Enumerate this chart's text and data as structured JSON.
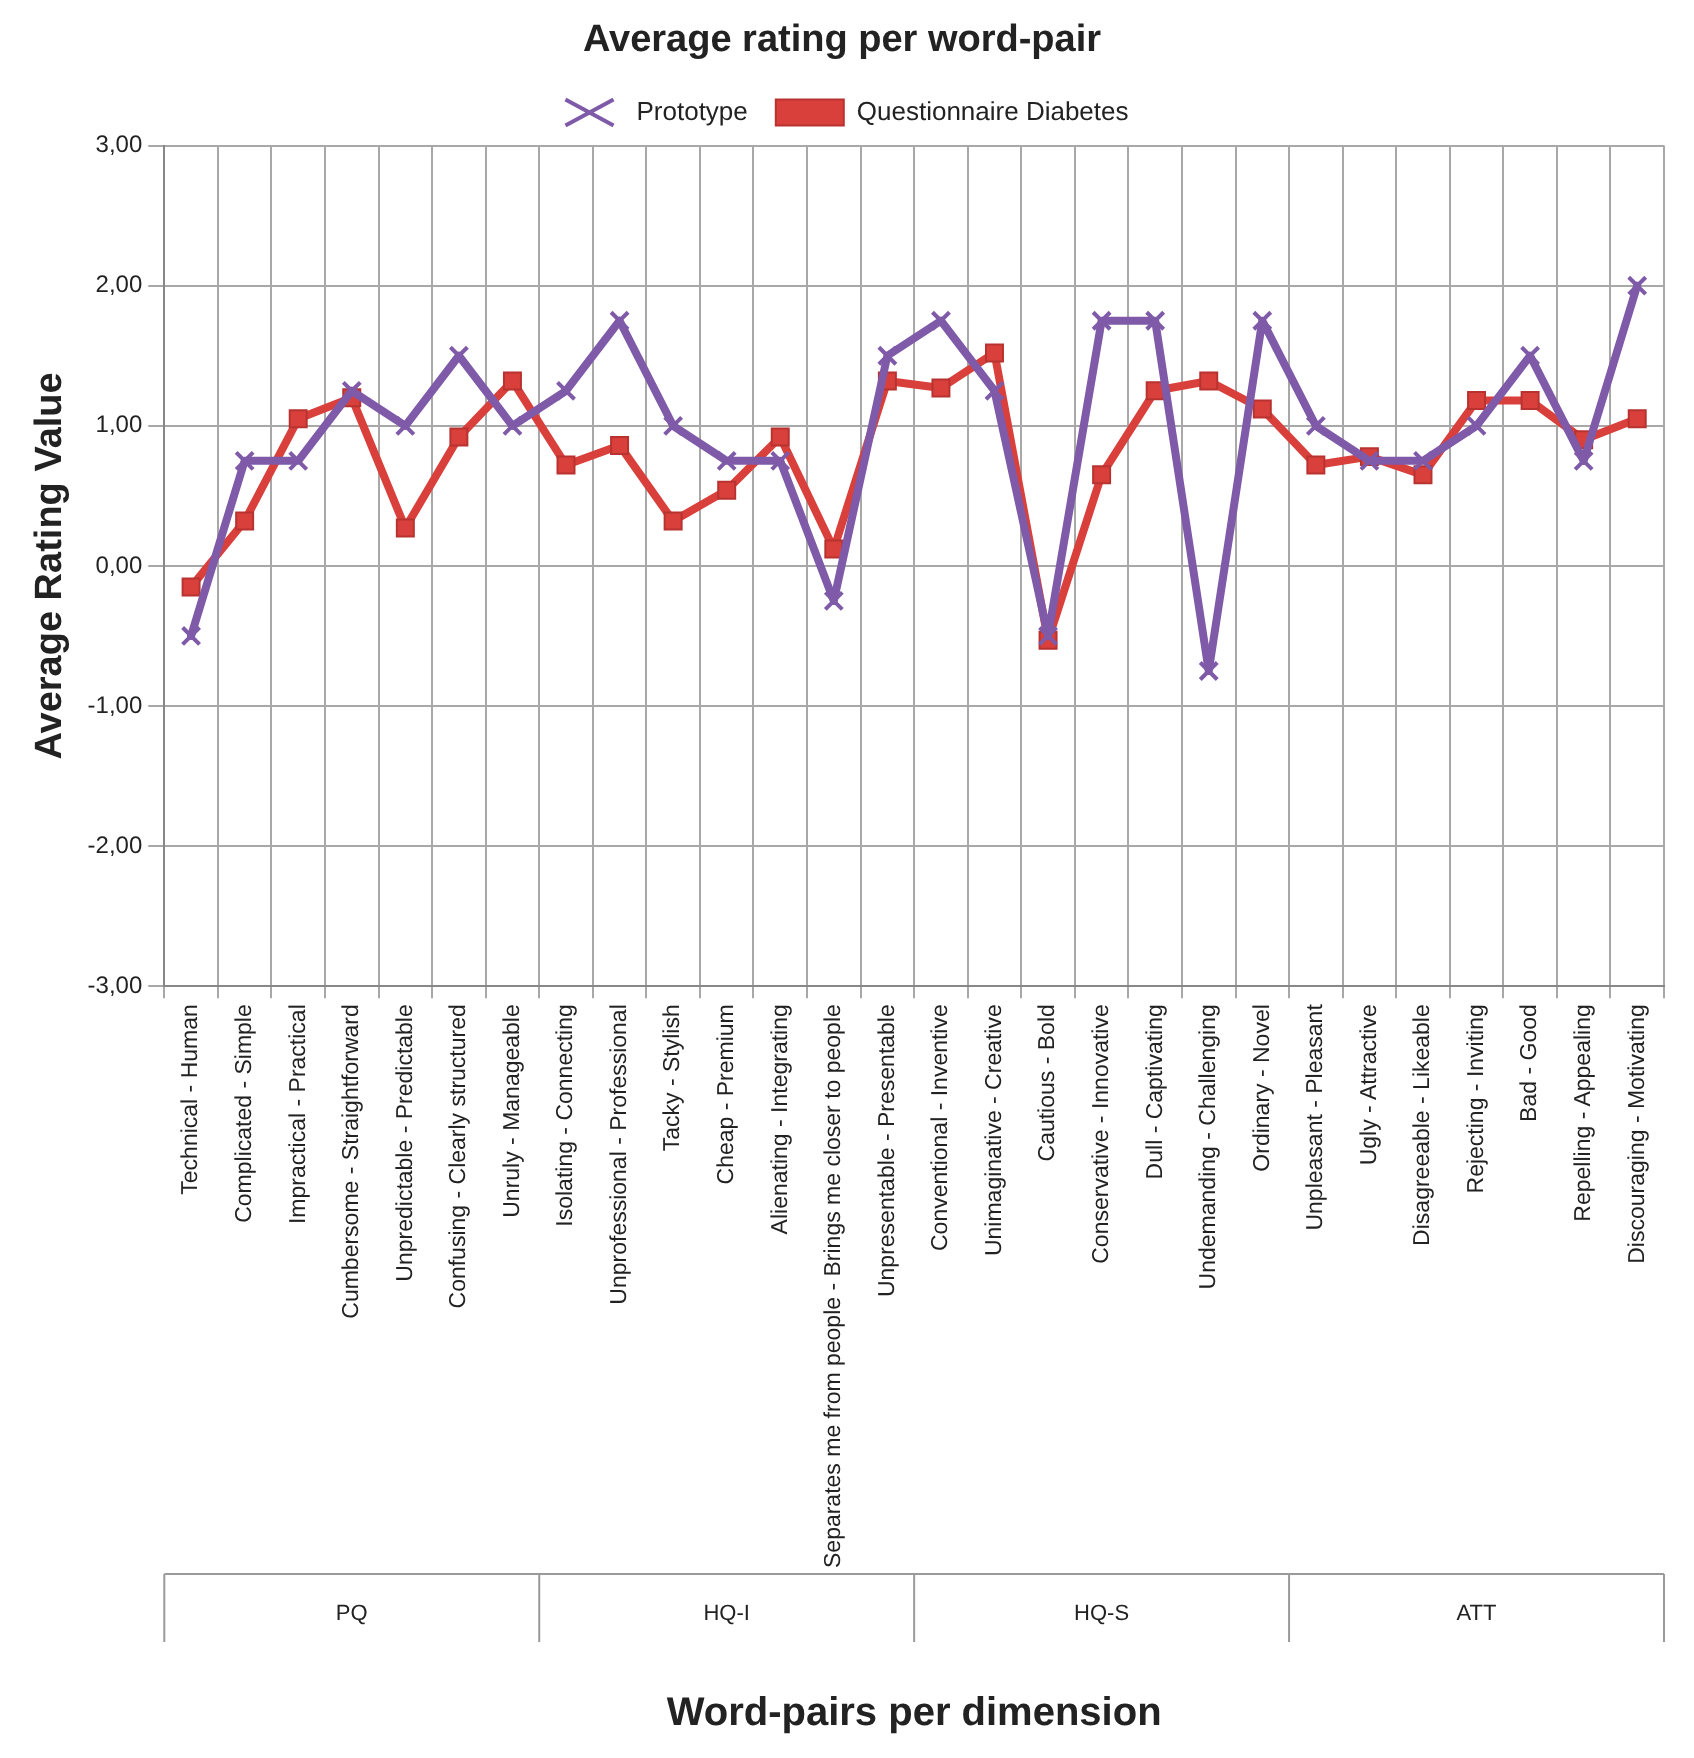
{
  "chart_data": {
    "type": "line",
    "title": "Average rating per word-pair",
    "xlabel": "Word-pairs per dimension",
    "ylabel": "Average Rating Value",
    "categories": [
      "Technical - Human",
      "Complicated - Simple",
      "Impractical - Practical",
      "Cumbersome - Straightforward",
      "Unpredictable - Predictable",
      "Confusing - Clearly structured",
      "Unruly - Manageable",
      "Isolating - Connecting",
      "Unprofessional - Professional",
      "Tacky - Stylish",
      "Cheap - Premium",
      "Alienating - Integrating",
      "Separates me from people - Brings me closer to people",
      "Unpresentable - Presentable",
      "Conventional - Inventive",
      "Unimaginative - Creative",
      "Cautious - Bold",
      "Conservative - Innovative",
      "Dull - Captivating",
      "Undemanding - Challenging",
      "Ordinary - Novel",
      "Unpleasant - Pleasant",
      "Ugly - Attractive",
      "Disagreeable - Likeable",
      "Rejecting - Inviting",
      "Bad - Good",
      "Repelling - Appealing",
      "Discouraging - Motivating"
    ],
    "series": [
      {
        "name": "Questionnaire Diabetes",
        "color": "#d9403c",
        "marker": "square",
        "values": [
          -0.15,
          0.32,
          1.05,
          1.2,
          0.27,
          0.92,
          1.32,
          0.72,
          0.86,
          0.32,
          0.54,
          0.92,
          0.12,
          1.32,
          1.27,
          1.52,
          -0.53,
          0.65,
          1.25,
          1.32,
          1.12,
          0.72,
          0.78,
          0.65,
          1.18,
          1.18,
          0.9,
          1.05
        ]
      },
      {
        "name": "Prototype",
        "color": "#7f5aa8",
        "marker": "cross",
        "values": [
          -0.5,
          0.75,
          0.75,
          1.25,
          1.0,
          1.5,
          1.0,
          1.25,
          1.75,
          1.0,
          0.75,
          0.75,
          -0.25,
          1.5,
          1.75,
          1.25,
          -0.5,
          1.75,
          1.75,
          -0.75,
          1.75,
          1.0,
          0.75,
          0.75,
          1.0,
          1.5,
          0.75,
          2.0
        ]
      }
    ],
    "ylim": [
      -3,
      3
    ],
    "yticks": [
      {
        "value": -3,
        "label": "-3,00"
      },
      {
        "value": -2,
        "label": "-2,00"
      },
      {
        "value": -1,
        "label": "-1,00"
      },
      {
        "value": 0,
        "label": "0,00"
      },
      {
        "value": 1,
        "label": "1,00"
      },
      {
        "value": 2,
        "label": "2,00"
      },
      {
        "value": 3,
        "label": "3,00"
      }
    ],
    "grid": true,
    "legend": "top",
    "line_style": "solid",
    "annotations": [
      "PQ",
      "HQ-I",
      "HQ-S",
      "ATT"
    ]
  }
}
